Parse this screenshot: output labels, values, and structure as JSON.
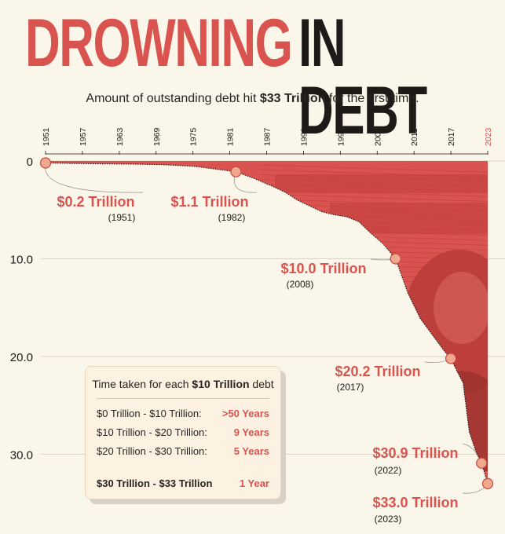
{
  "header": {
    "title_red": "DROWNING",
    "title_dark": "IN DEBT",
    "subtitle_pre": "Amount of outstanding debt hit ",
    "subtitle_bold": "$33 Trillion",
    "subtitle_post": " for the first time."
  },
  "colors": {
    "accent": "#d9534f",
    "background": "#fbf6ea",
    "point_fill": "#f0a88f",
    "area_fill": "#d9534f",
    "text": "#2a2522"
  },
  "chart_data": {
    "type": "area",
    "xlim": [
      1951,
      2023
    ],
    "x_ticks": [
      "1951",
      "1957",
      "1963",
      "1969",
      "1975",
      "1981",
      "1987",
      "1993",
      "1999",
      "2005",
      "2011",
      "2017",
      "2023"
    ],
    "y_ticks": [
      "0",
      "10.0",
      "20.0",
      "30.0"
    ],
    "ylim": [
      0,
      33
    ],
    "y_inverted": true,
    "grid": true,
    "x": [
      1951,
      1955,
      1960,
      1965,
      1970,
      1975,
      1978,
      1982,
      1985,
      1988,
      1990,
      1992,
      1994,
      1996,
      1998,
      2000,
      2002,
      2004,
      2006,
      2008,
      2010,
      2012,
      2014,
      2016,
      2017,
      2018,
      2019,
      2020,
      2021,
      2022,
      2023
    ],
    "y": [
      0.2,
      0.25,
      0.29,
      0.32,
      0.38,
      0.54,
      0.77,
      1.1,
      1.8,
      2.6,
      3.2,
      4.0,
      4.6,
      5.2,
      5.5,
      5.7,
      6.2,
      7.4,
      8.5,
      10.0,
      13.5,
      16.1,
      17.8,
      19.5,
      20.2,
      21.5,
      22.7,
      27.7,
      29.6,
      30.9,
      33.0
    ],
    "annotations": [
      {
        "year": 1951,
        "value": 0.2,
        "label": "$0.2 Trillion",
        "sub": "(1951)"
      },
      {
        "year": 1982,
        "value": 1.1,
        "label": "$1.1 Trillion",
        "sub": "(1982)"
      },
      {
        "year": 2008,
        "value": 10.0,
        "label": "$10.0 Trillion",
        "sub": "(2008)"
      },
      {
        "year": 2017,
        "value": 20.2,
        "label": "$20.2 Trillion",
        "sub": "(2017)"
      },
      {
        "year": 2022,
        "value": 30.9,
        "label": "$30.9 Trillion",
        "sub": "(2022)"
      },
      {
        "year": 2023,
        "value": 33.0,
        "label": "$33.0 Trillion",
        "sub": "(2023)"
      }
    ]
  },
  "info_box": {
    "title_pre": "Time taken for each ",
    "title_bold": "$10 Trillion",
    "title_post": " debt",
    "rows": [
      {
        "label": "$0 Trillion - $10 Trillion:",
        "value": ">50 Years"
      },
      {
        "label": "$10 Trillion - $20 Trillion:",
        "value": "9 Years"
      },
      {
        "label": "$20 Trillion - $30 Trillion:",
        "value": "5 Years"
      },
      {
        "label": "$30 Trillion - $33 Trillion",
        "value": "1 Year"
      }
    ]
  }
}
